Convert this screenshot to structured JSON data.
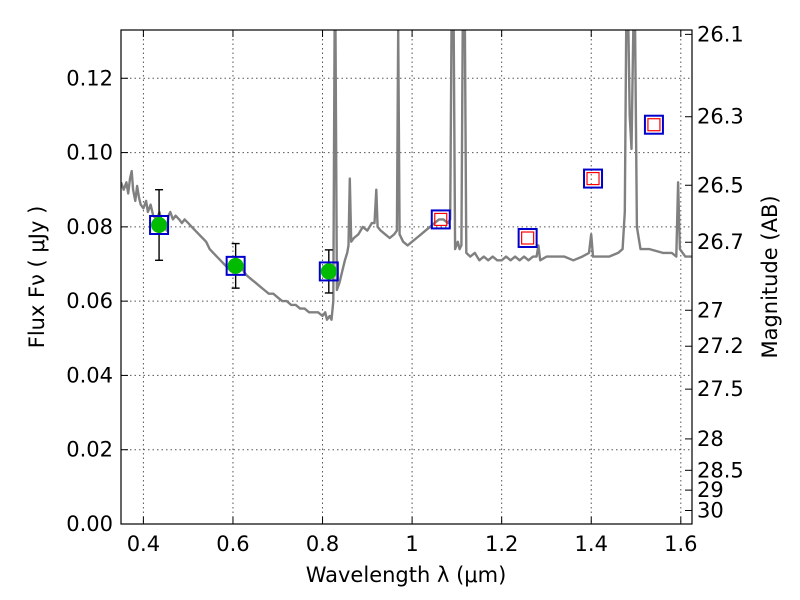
{
  "chart_data": {
    "type": "line",
    "xlabel": "Wavelength  λ (μm)",
    "ylabel": "Flux  Fν  ( μJy )",
    "y2label": "Magnitude (AB)",
    "xlim": [
      0.35,
      1.625
    ],
    "ylim": [
      0.0,
      0.133
    ],
    "grid": true,
    "x_ticks": [
      0.4,
      0.6,
      0.8,
      1.0,
      1.2,
      1.4,
      1.6
    ],
    "x_tick_labels": [
      "0.4",
      "0.6",
      "0.8",
      "1",
      "1.2",
      "1.4",
      "1.6"
    ],
    "y_ticks": [
      0.0,
      0.02,
      0.04,
      0.06,
      0.08,
      0.1,
      0.12
    ],
    "y_tick_labels": [
      "0.00",
      "0.02",
      "0.04",
      "0.06",
      "0.08",
      "0.10",
      "0.12"
    ],
    "y2_ticks": [
      "26.1",
      "26.3",
      "26.5",
      "26.7",
      "27",
      "27.2",
      "27.5",
      "28",
      "28.5",
      "29",
      "30"
    ],
    "series": [
      {
        "kind": "model_spectrum",
        "color": "#808080",
        "points": [
          [
            0.35,
            0.092
          ],
          [
            0.356,
            0.09
          ],
          [
            0.362,
            0.092
          ],
          [
            0.366,
            0.089
          ],
          [
            0.37,
            0.093
          ],
          [
            0.374,
            0.095
          ],
          [
            0.377,
            0.09
          ],
          [
            0.382,
            0.087
          ],
          [
            0.386,
            0.091
          ],
          [
            0.39,
            0.088
          ],
          [
            0.394,
            0.086
          ],
          [
            0.4,
            0.085
          ],
          [
            0.406,
            0.087
          ],
          [
            0.41,
            0.084
          ],
          [
            0.416,
            0.086
          ],
          [
            0.422,
            0.083
          ],
          [
            0.43,
            0.082
          ],
          [
            0.436,
            0.084
          ],
          [
            0.44,
            0.082
          ],
          [
            0.446,
            0.081
          ],
          [
            0.452,
            0.079
          ],
          [
            0.456,
            0.083
          ],
          [
            0.46,
            0.084
          ],
          [
            0.466,
            0.082
          ],
          [
            0.472,
            0.083
          ],
          [
            0.48,
            0.082
          ],
          [
            0.486,
            0.081
          ],
          [
            0.492,
            0.082
          ],
          [
            0.5,
            0.081
          ],
          [
            0.508,
            0.08
          ],
          [
            0.516,
            0.079
          ],
          [
            0.524,
            0.078
          ],
          [
            0.532,
            0.077
          ],
          [
            0.54,
            0.076
          ],
          [
            0.548,
            0.074
          ],
          [
            0.556,
            0.073
          ],
          [
            0.564,
            0.072
          ],
          [
            0.572,
            0.071
          ],
          [
            0.58,
            0.07
          ],
          [
            0.588,
            0.069
          ],
          [
            0.596,
            0.068
          ],
          [
            0.604,
            0.068
          ],
          [
            0.612,
            0.069
          ],
          [
            0.618,
            0.07
          ],
          [
            0.624,
            0.068
          ],
          [
            0.63,
            0.067
          ],
          [
            0.64,
            0.066
          ],
          [
            0.65,
            0.065
          ],
          [
            0.66,
            0.064
          ],
          [
            0.67,
            0.063
          ],
          [
            0.68,
            0.062
          ],
          [
            0.69,
            0.062
          ],
          [
            0.7,
            0.061
          ],
          [
            0.71,
            0.06
          ],
          [
            0.72,
            0.06
          ],
          [
            0.73,
            0.059
          ],
          [
            0.74,
            0.059
          ],
          [
            0.75,
            0.058
          ],
          [
            0.76,
            0.058
          ],
          [
            0.77,
            0.057
          ],
          [
            0.78,
            0.057
          ],
          [
            0.79,
            0.057
          ],
          [
            0.8,
            0.056
          ],
          [
            0.806,
            0.057
          ],
          [
            0.81,
            0.055
          ],
          [
            0.816,
            0.056
          ],
          [
            0.82,
            0.055
          ],
          [
            0.824,
            0.06
          ],
          [
            0.827,
            0.133
          ],
          [
            0.829,
            0.133
          ],
          [
            0.832,
            0.063
          ],
          [
            0.838,
            0.065
          ],
          [
            0.844,
            0.068
          ],
          [
            0.85,
            0.071
          ],
          [
            0.855,
            0.073
          ],
          [
            0.858,
            0.075
          ],
          [
            0.861,
            0.093
          ],
          [
            0.864,
            0.076
          ],
          [
            0.87,
            0.077
          ],
          [
            0.88,
            0.078
          ],
          [
            0.89,
            0.08
          ],
          [
            0.9,
            0.079
          ],
          [
            0.91,
            0.081
          ],
          [
            0.916,
            0.081
          ],
          [
            0.92,
            0.09
          ],
          [
            0.923,
            0.08
          ],
          [
            0.93,
            0.079
          ],
          [
            0.94,
            0.078
          ],
          [
            0.95,
            0.077
          ],
          [
            0.96,
            0.078
          ],
          [
            0.966,
            0.079
          ],
          [
            0.969,
            0.133
          ],
          [
            0.972,
            0.078
          ],
          [
            0.98,
            0.076
          ],
          [
            0.99,
            0.075
          ],
          [
            1.0,
            0.076
          ],
          [
            1.01,
            0.077
          ],
          [
            1.02,
            0.078
          ],
          [
            1.03,
            0.079
          ],
          [
            1.04,
            0.08
          ],
          [
            1.05,
            0.081
          ],
          [
            1.06,
            0.082
          ],
          [
            1.07,
            0.082
          ],
          [
            1.08,
            0.081
          ],
          [
            1.085,
            0.082
          ],
          [
            1.088,
            0.133
          ],
          [
            1.093,
            0.133
          ],
          [
            1.096,
            0.074
          ],
          [
            1.102,
            0.076
          ],
          [
            1.106,
            0.074
          ],
          [
            1.11,
            0.075
          ],
          [
            1.113,
            0.133
          ],
          [
            1.118,
            0.133
          ],
          [
            1.121,
            0.073
          ],
          [
            1.13,
            0.072
          ],
          [
            1.14,
            0.073
          ],
          [
            1.15,
            0.071
          ],
          [
            1.16,
            0.072
          ],
          [
            1.17,
            0.071
          ],
          [
            1.18,
            0.072
          ],
          [
            1.19,
            0.071
          ],
          [
            1.2,
            0.071
          ],
          [
            1.21,
            0.072
          ],
          [
            1.22,
            0.071
          ],
          [
            1.23,
            0.072
          ],
          [
            1.24,
            0.071
          ],
          [
            1.25,
            0.072
          ],
          [
            1.26,
            0.071
          ],
          [
            1.27,
            0.072
          ],
          [
            1.278,
            0.072
          ],
          [
            1.282,
            0.075
          ],
          [
            1.286,
            0.071
          ],
          [
            1.3,
            0.072
          ],
          [
            1.32,
            0.072
          ],
          [
            1.34,
            0.072
          ],
          [
            1.36,
            0.071
          ],
          [
            1.38,
            0.072
          ],
          [
            1.395,
            0.073
          ],
          [
            1.4,
            0.078
          ],
          [
            1.404,
            0.072
          ],
          [
            1.42,
            0.072
          ],
          [
            1.44,
            0.072
          ],
          [
            1.46,
            0.073
          ],
          [
            1.47,
            0.074
          ],
          [
            1.475,
            0.084
          ],
          [
            1.478,
            0.133
          ],
          [
            1.483,
            0.133
          ],
          [
            1.486,
            0.11
          ],
          [
            1.49,
            0.101
          ],
          [
            1.494,
            0.133
          ],
          [
            1.498,
            0.133
          ],
          [
            1.502,
            0.08
          ],
          [
            1.51,
            0.074
          ],
          [
            1.53,
            0.074
          ],
          [
            1.56,
            0.073
          ],
          [
            1.58,
            0.073
          ],
          [
            1.59,
            0.072
          ],
          [
            1.594,
            0.092
          ],
          [
            1.598,
            0.074
          ],
          [
            1.61,
            0.072
          ],
          [
            1.625,
            0.072
          ]
        ]
      }
    ],
    "photometry_points": [
      {
        "x": 0.435,
        "y": 0.0805,
        "yerr_low": 0.0095,
        "yerr_high": 0.0095,
        "marker": "filled-circle",
        "color": "#00bb00",
        "model_box": true
      },
      {
        "x": 0.606,
        "y": 0.0695,
        "yerr_low": 0.006,
        "yerr_high": 0.006,
        "marker": "filled-circle",
        "color": "#00bb00",
        "model_box": true
      },
      {
        "x": 0.814,
        "y": 0.068,
        "yerr_low": 0.0058,
        "yerr_high": 0.0058,
        "marker": "filled-circle",
        "color": "#00bb00",
        "model_box": true
      },
      {
        "x": 1.064,
        "y": 0.082,
        "marker": "open-square-red",
        "color": "#ff0000",
        "model_box": true
      },
      {
        "x": 1.258,
        "y": 0.077,
        "marker": "open-square-red",
        "color": "#ff0000",
        "model_box": true
      },
      {
        "x": 1.404,
        "y": 0.093,
        "marker": "open-square-red",
        "color": "#ff0000",
        "model_box": true
      },
      {
        "x": 1.54,
        "y": 0.1075,
        "marker": "open-square-red",
        "color": "#ff0000",
        "model_box": true
      }
    ],
    "colors": {
      "model_box": "#0000cc",
      "upper_limit_box": "#ff0000",
      "detection": "#00bb00",
      "spectrum": "#808080",
      "grid": "#555555"
    }
  }
}
